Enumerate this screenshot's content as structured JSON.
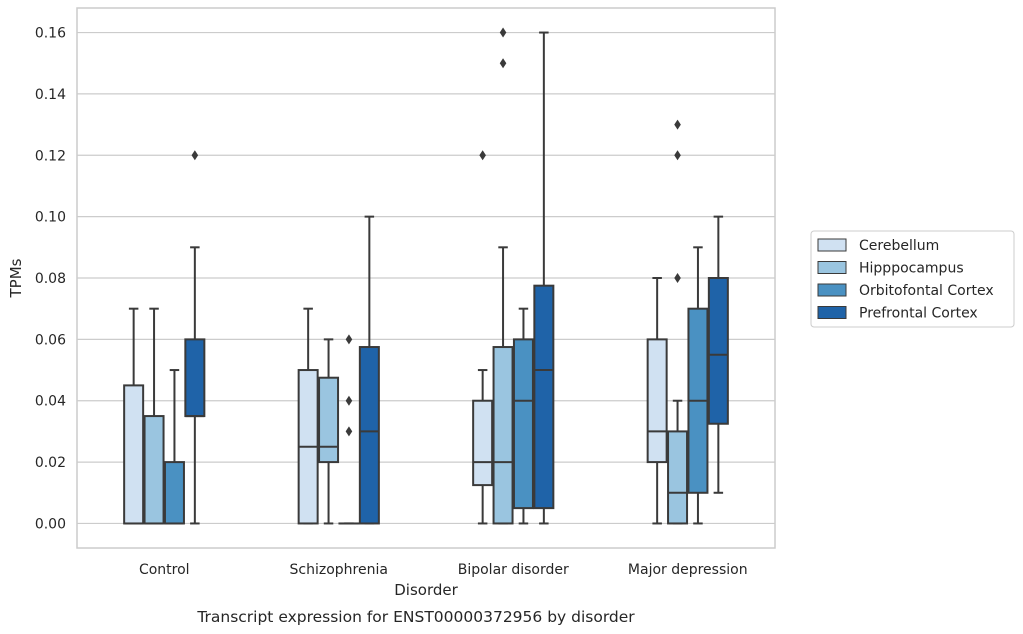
{
  "chart_data": {
    "type": "box",
    "xlabel": "Disorder",
    "ylabel": "TPMs",
    "caption": "Transcript expression for ENST00000372956 by disorder",
    "ylim": [
      -0.008,
      0.168
    ],
    "yticks": [
      "0.00",
      "0.02",
      "0.04",
      "0.06",
      "0.08",
      "0.10",
      "0.12",
      "0.14",
      "0.16"
    ],
    "grid": true,
    "legend_position": "right",
    "categories": [
      "Control",
      "Schizophrenia",
      "Bipolar disorder",
      "Major depression"
    ],
    "series": [
      {
        "name": "Cerebellum",
        "color": "#d0e1f2",
        "boxes": [
          {
            "whisker_low": 0.0,
            "q1": 0.0,
            "median": 0.0,
            "q3": 0.045,
            "whisker_high": 0.07,
            "outliers": []
          },
          {
            "whisker_low": 0.0,
            "q1": 0.0,
            "median": 0.025,
            "q3": 0.05,
            "whisker_high": 0.07,
            "outliers": []
          },
          {
            "whisker_low": 0.0,
            "q1": 0.0125,
            "median": 0.02,
            "q3": 0.04,
            "whisker_high": 0.05,
            "outliers": [
              0.12
            ]
          },
          {
            "whisker_low": 0.0,
            "q1": 0.02,
            "median": 0.03,
            "q3": 0.06,
            "whisker_high": 0.08,
            "outliers": []
          }
        ]
      },
      {
        "name": "Hipppocampus",
        "color": "#9ac5e0",
        "boxes": [
          {
            "whisker_low": 0.0,
            "q1": 0.0,
            "median": 0.0,
            "q3": 0.035,
            "whisker_high": 0.07,
            "outliers": []
          },
          {
            "whisker_low": 0.0,
            "q1": 0.02,
            "median": 0.025,
            "q3": 0.0475,
            "whisker_high": 0.06,
            "outliers": []
          },
          {
            "whisker_low": 0.0,
            "q1": 0.0,
            "median": 0.02,
            "q3": 0.0575,
            "whisker_high": 0.09,
            "outliers": [
              0.15,
              0.16
            ]
          },
          {
            "whisker_low": 0.0,
            "q1": 0.0,
            "median": 0.01,
            "q3": 0.03,
            "whisker_high": 0.04,
            "outliers": [
              0.08,
              0.12,
              0.13
            ]
          }
        ]
      },
      {
        "name": "Orbitofontal Cortex",
        "color": "#4a91c2",
        "boxes": [
          {
            "whisker_low": 0.0,
            "q1": 0.0,
            "median": 0.0,
            "q3": 0.02,
            "whisker_high": 0.05,
            "outliers": []
          },
          {
            "whisker_low": 0.0,
            "q1": 0.0,
            "median": 0.0,
            "q3": 0.0,
            "whisker_high": 0.0,
            "outliers": [
              0.03,
              0.04,
              0.06
            ]
          },
          {
            "whisker_low": 0.0,
            "q1": 0.005,
            "median": 0.04,
            "q3": 0.06,
            "whisker_high": 0.07,
            "outliers": []
          },
          {
            "whisker_low": 0.0,
            "q1": 0.01,
            "median": 0.04,
            "q3": 0.07,
            "whisker_high": 0.09,
            "outliers": []
          }
        ]
      },
      {
        "name": "Prefrontal Cortex",
        "color": "#1f63a8",
        "boxes": [
          {
            "whisker_low": 0.0,
            "q1": 0.035,
            "median": 0.035,
            "q3": 0.06,
            "whisker_high": 0.09,
            "outliers": [
              0.12
            ]
          },
          {
            "whisker_low": 0.0,
            "q1": 0.0,
            "median": 0.03,
            "q3": 0.0575,
            "whisker_high": 0.1,
            "outliers": []
          },
          {
            "whisker_low": 0.0,
            "q1": 0.005,
            "median": 0.05,
            "q3": 0.0775,
            "whisker_high": 0.16,
            "outliers": []
          },
          {
            "whisker_low": 0.01,
            "q1": 0.0325,
            "median": 0.055,
            "q3": 0.08,
            "whisker_high": 0.1,
            "outliers": []
          }
        ]
      }
    ]
  }
}
